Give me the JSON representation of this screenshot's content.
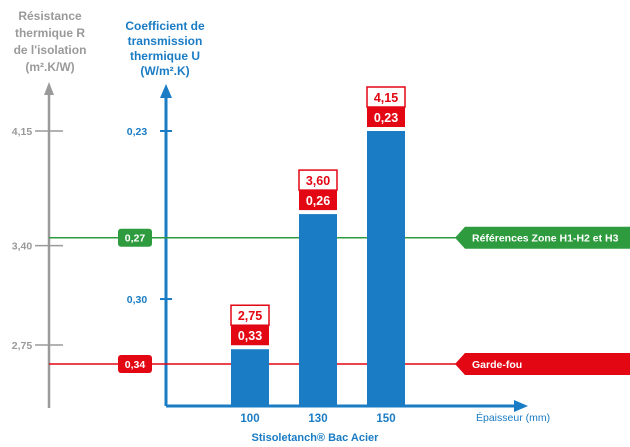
{
  "chart_data": {
    "type": "bar",
    "left_axis": {
      "title_lines": [
        "Résistance",
        "thermique R",
        "de l'isolation",
        "(m².K/W)"
      ],
      "ticks": [
        "4,15",
        "3,40",
        "2,75"
      ]
    },
    "right_axis": {
      "title_lines": [
        "Coefficient de",
        "transmission",
        "thermique U",
        "(W/m².K)"
      ],
      "ticks": [
        "0,23",
        "0,27",
        "0,30",
        "0,34"
      ]
    },
    "categories": [
      "100",
      "130",
      "150"
    ],
    "values_U": [
      0.33,
      0.26,
      0.23
    ],
    "values_R": [
      2.75,
      3.6,
      4.15
    ],
    "labels_U": [
      "0,33",
      "0,26",
      "0,23"
    ],
    "labels_R": [
      "2,75",
      "3,60",
      "4,15"
    ],
    "xlabel": "Épaisseur (mm)",
    "product": "Stisoletanch® Bac Acier",
    "references": [
      {
        "value_label": "0,27",
        "value": 0.27,
        "label": "Références Zone H1-H2 et H3",
        "color": "#2e9c3e"
      },
      {
        "value_label": "0,34",
        "value": 0.34,
        "label": "Garde-fou",
        "color": "#e30613"
      }
    ],
    "colors": {
      "bar": "#1a7cc4",
      "axis_blue": "#1a7cc4",
      "axis_gray": "#9a9a9a",
      "label_red": "#e30613"
    }
  }
}
